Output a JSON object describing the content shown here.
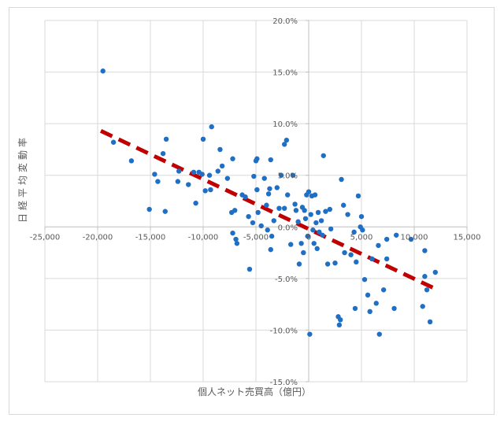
{
  "chart_data": {
    "type": "scatter",
    "xlabel": "個人ネット売買高（億円）",
    "ylabel": "日経平均変動率",
    "xlim": [
      -25000,
      15000
    ],
    "ylim": [
      -0.15,
      0.2
    ],
    "grid": true,
    "x_ticks": [
      -25000,
      -20000,
      -15000,
      -10000,
      -5000,
      0,
      5000,
      10000,
      15000
    ],
    "x_tick_labels": [
      "-25,000",
      "-20,000",
      "-15,000",
      "-10,000",
      "-5,000",
      "0",
      "5,000",
      "10,000",
      "15,000"
    ],
    "y_ticks": [
      -0.15,
      -0.1,
      -0.05,
      0,
      0.05,
      0.1,
      0.15,
      0.2
    ],
    "y_tick_labels": [
      "-15.0%",
      "-10.0%",
      "-5.0%",
      "0.0%",
      "5.0%",
      "10.0%",
      "15.0%",
      "20.0%"
    ],
    "point_color": "#1f6fc5",
    "trendline": {
      "type": "linear",
      "color": "#c00000",
      "style": "dashed",
      "x": [
        -19700,
        11800
      ],
      "y": [
        0.093,
        -0.059
      ]
    },
    "points": [
      {
        "x": -19500,
        "y": 0.151
      },
      {
        "x": -18500,
        "y": 0.082
      },
      {
        "x": -16800,
        "y": 0.064
      },
      {
        "x": -15100,
        "y": 0.017
      },
      {
        "x": -14600,
        "y": 0.051
      },
      {
        "x": -14300,
        "y": 0.044
      },
      {
        "x": -13800,
        "y": 0.071
      },
      {
        "x": -13500,
        "y": 0.085
      },
      {
        "x": -13600,
        "y": 0.015
      },
      {
        "x": -12400,
        "y": 0.044
      },
      {
        "x": -12300,
        "y": 0.054
      },
      {
        "x": -11400,
        "y": 0.041
      },
      {
        "x": -10900,
        "y": 0.053
      },
      {
        "x": -10700,
        "y": 0.023
      },
      {
        "x": -10400,
        "y": 0.053
      },
      {
        "x": -10100,
        "y": 0.051
      },
      {
        "x": -10000,
        "y": 0.085
      },
      {
        "x": -9800,
        "y": 0.035
      },
      {
        "x": -9400,
        "y": 0.05
      },
      {
        "x": -9200,
        "y": 0.097
      },
      {
        "x": -9300,
        "y": 0.036
      },
      {
        "x": -8600,
        "y": 0.054
      },
      {
        "x": -8400,
        "y": 0.075
      },
      {
        "x": -8200,
        "y": 0.059
      },
      {
        "x": -7700,
        "y": 0.047
      },
      {
        "x": -7300,
        "y": 0.014
      },
      {
        "x": -7200,
        "y": 0.066
      },
      {
        "x": -7000,
        "y": 0.016
      },
      {
        "x": -7200,
        "y": -0.006
      },
      {
        "x": -6900,
        "y": -0.012
      },
      {
        "x": -6800,
        "y": -0.016
      },
      {
        "x": -6300,
        "y": 0.031
      },
      {
        "x": -6000,
        "y": 0.029
      },
      {
        "x": -5700,
        "y": 0.01
      },
      {
        "x": -5600,
        "y": -0.041
      },
      {
        "x": -5300,
        "y": 0.004
      },
      {
        "x": -5200,
        "y": 0.049
      },
      {
        "x": -5000,
        "y": 0.064
      },
      {
        "x": -4900,
        "y": 0.066
      },
      {
        "x": -4800,
        "y": 0.014
      },
      {
        "x": -4900,
        "y": 0.036
      },
      {
        "x": -4500,
        "y": 0.001
      },
      {
        "x": -4200,
        "y": 0.047
      },
      {
        "x": -4000,
        "y": 0.021
      },
      {
        "x": -3800,
        "y": 0.032
      },
      {
        "x": -3900,
        "y": -0.003
      },
      {
        "x": -3700,
        "y": 0.037
      },
      {
        "x": -3600,
        "y": 0.065
      },
      {
        "x": -3500,
        "y": -0.009
      },
      {
        "x": -3600,
        "y": -0.022
      },
      {
        "x": -3300,
        "y": 0.006
      },
      {
        "x": -3000,
        "y": 0.038
      },
      {
        "x": -2800,
        "y": 0.018
      },
      {
        "x": -2600,
        "y": 0.05
      },
      {
        "x": -2300,
        "y": 0.08
      },
      {
        "x": -2100,
        "y": 0.084
      },
      {
        "x": -2300,
        "y": 0.018
      },
      {
        "x": -2000,
        "y": 0.031
      },
      {
        "x": -1700,
        "y": -0.017
      },
      {
        "x": -1500,
        "y": 0.05
      },
      {
        "x": -1300,
        "y": 0.022
      },
      {
        "x": -1200,
        "y": 0.016
      },
      {
        "x": -1000,
        "y": 0.005
      },
      {
        "x": -900,
        "y": -0.036
      },
      {
        "x": -700,
        "y": -0.016
      },
      {
        "x": -600,
        "y": 0.019
      },
      {
        "x": -500,
        "y": -0.025
      },
      {
        "x": -400,
        "y": 0.016
      },
      {
        "x": -300,
        "y": 0.008
      },
      {
        "x": -200,
        "y": 0.031
      },
      {
        "x": -100,
        "y": -0.009
      },
      {
        "x": 0,
        "y": 0.034
      },
      {
        "x": 100,
        "y": -0.104
      },
      {
        "x": 200,
        "y": 0.012
      },
      {
        "x": 300,
        "y": 0.03
      },
      {
        "x": 400,
        "y": -0.003
      },
      {
        "x": 500,
        "y": -0.016
      },
      {
        "x": 600,
        "y": 0.031
      },
      {
        "x": 700,
        "y": 0.004
      },
      {
        "x": 800,
        "y": -0.021
      },
      {
        "x": 900,
        "y": 0.014
      },
      {
        "x": 1000,
        "y": -0.005
      },
      {
        "x": 1200,
        "y": 0.006
      },
      {
        "x": 1300,
        "y": -0.008
      },
      {
        "x": 1400,
        "y": 0.069
      },
      {
        "x": 1600,
        "y": 0.015
      },
      {
        "x": 1800,
        "y": -0.036
      },
      {
        "x": 2000,
        "y": 0.017
      },
      {
        "x": 2100,
        "y": -0.002
      },
      {
        "x": 2500,
        "y": -0.035
      },
      {
        "x": 2800,
        "y": -0.087
      },
      {
        "x": 2900,
        "y": -0.095
      },
      {
        "x": 3000,
        "y": -0.09
      },
      {
        "x": 3100,
        "y": 0.046
      },
      {
        "x": 3300,
        "y": 0.021
      },
      {
        "x": 3400,
        "y": -0.025
      },
      {
        "x": 3700,
        "y": 0.012
      },
      {
        "x": 4000,
        "y": -0.027
      },
      {
        "x": 4300,
        "y": -0.005
      },
      {
        "x": 4400,
        "y": -0.079
      },
      {
        "x": 4500,
        "y": -0.034
      },
      {
        "x": 4700,
        "y": 0.03
      },
      {
        "x": 4900,
        "y": 0.0
      },
      {
        "x": 5000,
        "y": 0.01
      },
      {
        "x": 5100,
        "y": -0.003
      },
      {
        "x": 5300,
        "y": -0.051
      },
      {
        "x": 5600,
        "y": -0.066
      },
      {
        "x": 5800,
        "y": -0.082
      },
      {
        "x": 6000,
        "y": -0.031
      },
      {
        "x": 6400,
        "y": -0.074
      },
      {
        "x": 6600,
        "y": -0.018
      },
      {
        "x": 6700,
        "y": -0.104
      },
      {
        "x": 7100,
        "y": -0.061
      },
      {
        "x": 7400,
        "y": -0.012
      },
      {
        "x": 7400,
        "y": -0.031
      },
      {
        "x": 8100,
        "y": -0.079
      },
      {
        "x": 8300,
        "y": -0.008
      },
      {
        "x": 9700,
        "y": -0.012
      },
      {
        "x": 10800,
        "y": -0.077
      },
      {
        "x": 11000,
        "y": -0.023
      },
      {
        "x": 11000,
        "y": -0.048
      },
      {
        "x": 11200,
        "y": -0.061
      },
      {
        "x": 11500,
        "y": -0.092
      },
      {
        "x": 12000,
        "y": -0.044
      }
    ]
  }
}
